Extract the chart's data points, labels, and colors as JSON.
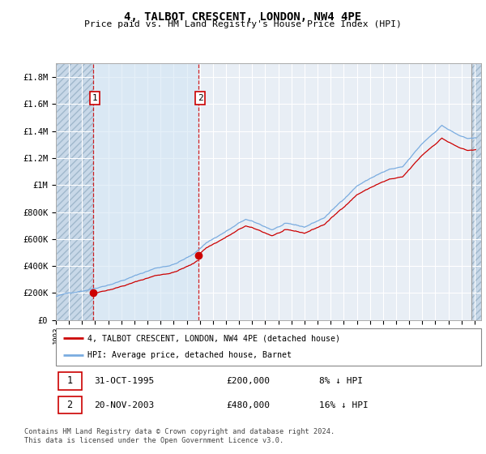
{
  "title": "4, TALBOT CRESCENT, LONDON, NW4 4PE",
  "subtitle": "Price paid vs. HM Land Registry's House Price Index (HPI)",
  "footer": "Contains HM Land Registry data © Crown copyright and database right 2024.\nThis data is licensed under the Open Government Licence v3.0.",
  "legend_line1": "4, TALBOT CRESCENT, LONDON, NW4 4PE (detached house)",
  "legend_line2": "HPI: Average price, detached house, Barnet",
  "transaction1_date": "31-OCT-1995",
  "transaction1_price": "£200,000",
  "transaction1_hpi": "8% ↓ HPI",
  "transaction2_date": "20-NOV-2003",
  "transaction2_price": "£480,000",
  "transaction2_hpi": "16% ↓ HPI",
  "price_color": "#cc0000",
  "hpi_color": "#7aace0",
  "background_color": "#e8eef5",
  "grid_color": "#ffffff",
  "ylim": [
    0,
    1900000
  ],
  "yticks": [
    0,
    200000,
    400000,
    600000,
    800000,
    1000000,
    1200000,
    1400000,
    1600000,
    1800000
  ],
  "ytick_labels": [
    "£0",
    "£200K",
    "£400K",
    "£600K",
    "£800K",
    "£1M",
    "£1.2M",
    "£1.4M",
    "£1.6M",
    "£1.8M"
  ],
  "transaction1_x": 1995.833,
  "transaction2_x": 2003.875,
  "xlim_left": 1993.0,
  "xlim_right": 2025.5,
  "hpi_base_at_t1": 200000,
  "hpi_base_at_t2": 480000,
  "hpi_scale_t1": 1.2903,
  "hpi_scale_t2": 1.0909
}
